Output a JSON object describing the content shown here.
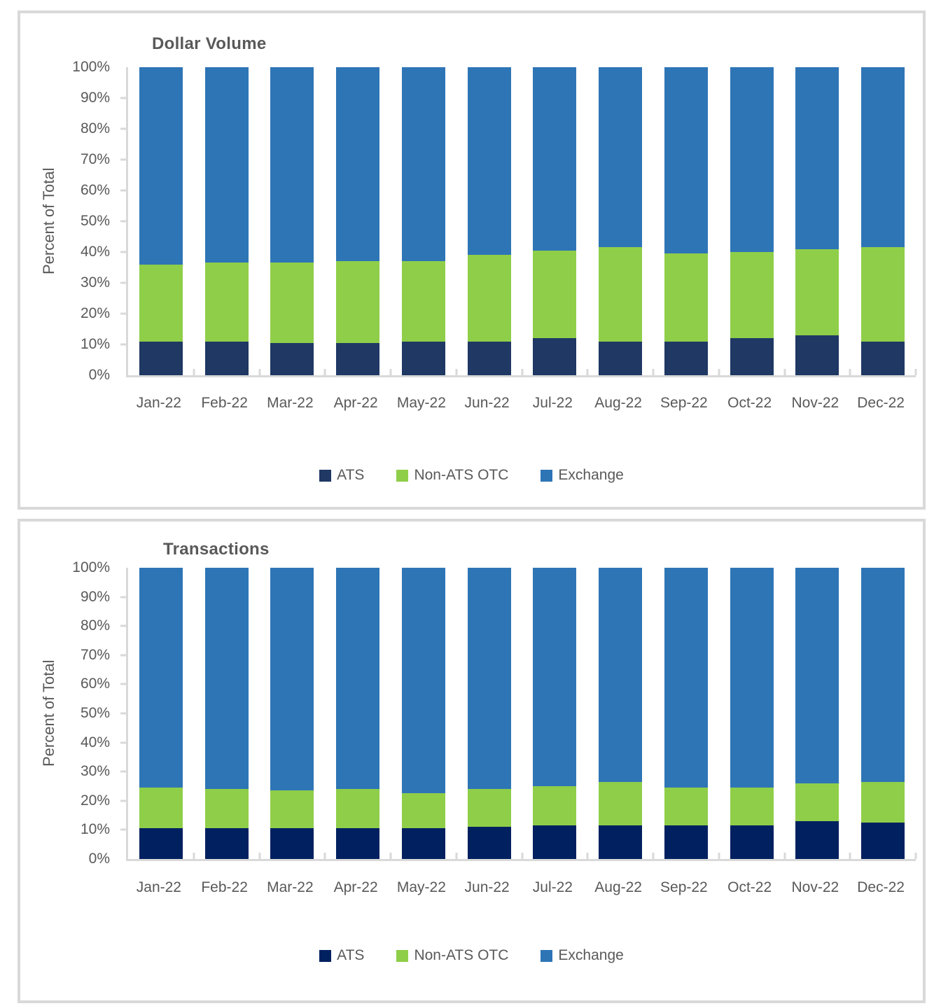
{
  "chart_data": [
    {
      "type": "bar",
      "stacked": true,
      "title": "Dollar Volume",
      "ylabel": "Percent of Total",
      "xlabel": "",
      "ylim": [
        0,
        100
      ],
      "grid": false,
      "legend_position": "bottom",
      "y_ticks": [
        "100%",
        "90%",
        "80%",
        "70%",
        "60%",
        "50%",
        "40%",
        "30%",
        "20%",
        "10%",
        "0%"
      ],
      "categories": [
        "Jan-22",
        "Feb-22",
        "Mar-22",
        "Apr-22",
        "May-22",
        "Jun-22",
        "Jul-22",
        "Aug-22",
        "Sep-22",
        "Oct-22",
        "Nov-22",
        "Dec-22"
      ],
      "series": [
        {
          "name": "ATS",
          "color": "#1F3864",
          "values": [
            11,
            11,
            10.5,
            10.5,
            11,
            11,
            12,
            11,
            11,
            12,
            13,
            11
          ]
        },
        {
          "name": "Non-ATS OTC",
          "color": "#8FCE49",
          "values": [
            25,
            25.5,
            26,
            26.5,
            26,
            28,
            28.5,
            30.5,
            28.5,
            28,
            28,
            30.5
          ]
        },
        {
          "name": "Exchange",
          "color": "#2E75B6",
          "values": [
            64,
            63.5,
            63.5,
            63,
            63,
            61,
            59.5,
            58.5,
            60.5,
            60,
            59,
            58.5
          ]
        }
      ]
    },
    {
      "type": "bar",
      "stacked": true,
      "title": "Transactions",
      "ylabel": "Percent of Total",
      "xlabel": "",
      "ylim": [
        0,
        100
      ],
      "grid": false,
      "legend_position": "bottom",
      "y_ticks": [
        "100%",
        "90%",
        "80%",
        "70%",
        "60%",
        "50%",
        "40%",
        "30%",
        "20%",
        "10%",
        "0%"
      ],
      "categories": [
        "Jan-22",
        "Feb-22",
        "Mar-22",
        "Apr-22",
        "May-22",
        "Jun-22",
        "Jul-22",
        "Aug-22",
        "Sep-22",
        "Oct-22",
        "Nov-22",
        "Dec-22"
      ],
      "series": [
        {
          "name": "ATS",
          "color": "#002060",
          "values": [
            10.5,
            10.5,
            10.5,
            10.5,
            10.5,
            11,
            11.5,
            11.5,
            11.5,
            11.5,
            13,
            12.5
          ]
        },
        {
          "name": "Non-ATS OTC",
          "color": "#8FCE49",
          "values": [
            14,
            13.5,
            13,
            13.5,
            12,
            13,
            13.5,
            15,
            13,
            13,
            13,
            14
          ]
        },
        {
          "name": "Exchange",
          "color": "#2E75B6",
          "values": [
            75.5,
            76,
            76.5,
            76,
            77.5,
            76,
            75,
            73.5,
            75.5,
            75.5,
            74,
            73.5
          ]
        }
      ]
    }
  ],
  "colors": {
    "panel_border": "#D9D9D9",
    "axis_line": "#D9D9D9",
    "text": "#595959"
  }
}
